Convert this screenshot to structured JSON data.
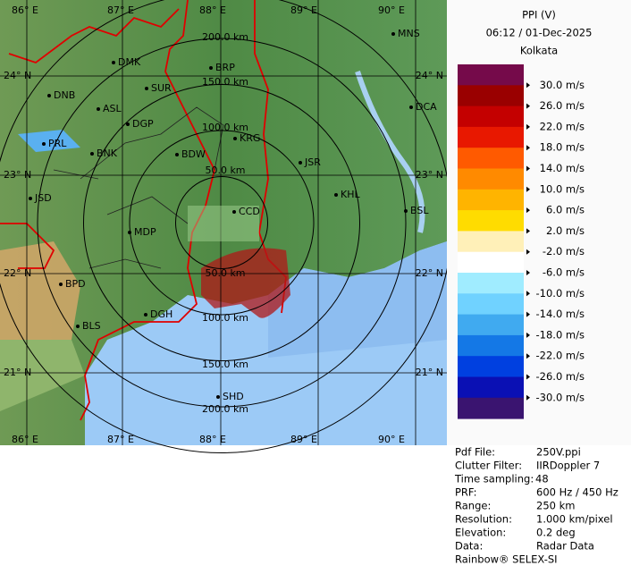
{
  "header": {
    "title": "PPI (V)",
    "time": "06:12 / 01-Dec-2025",
    "site": "Kolkata"
  },
  "legend": {
    "labels": [
      "30.0 m/s",
      "26.0 m/s",
      "22.0 m/s",
      "18.0 m/s",
      "14.0 m/s",
      "10.0 m/s",
      "6.0 m/s",
      "2.0 m/s",
      "-2.0 m/s",
      "-6.0 m/s",
      "-10.0 m/s",
      "-14.0 m/s",
      "-18.0 m/s",
      "-22.0 m/s",
      "-26.0 m/s",
      "-30.0 m/s"
    ]
  },
  "info": {
    "rows": [
      [
        "Pdf File:",
        "250V.ppi"
      ],
      [
        "Clutter Filter:",
        "IIRDoppler 7"
      ],
      [
        "Time sampling:",
        "48"
      ],
      [
        "PRF:",
        "600 Hz / 450 Hz"
      ],
      [
        "Range:",
        "250 km"
      ],
      [
        "Resolution:",
        "1.000 km/pixel"
      ],
      [
        "Elevation:",
        "0.2 deg"
      ],
      [
        "Data:",
        "Radar Data"
      ]
    ],
    "footer": "Rainbow® SELEX-SI"
  },
  "map": {
    "lon_labels_top": [
      "86° E",
      "87° E",
      "88° E",
      "89° E",
      "90° E"
    ],
    "lon_labels_bottom": [
      "86° E",
      "87° E",
      "88° E",
      "89° E",
      "90° E"
    ],
    "lat_labels_left": [
      "24° N",
      "23° N",
      "22° N",
      "21° N"
    ],
    "lat_labels_right": [
      "24° N",
      "23° N",
      "22° N",
      "21° N"
    ],
    "range_labels": [
      "200.0 km",
      "150.0 km",
      "100.0 km",
      "50.0 km",
      "50.0 km",
      "100.0 km",
      "150.0 km",
      "200.0 km"
    ],
    "stations": [
      "MNS",
      "BRP",
      "DMK",
      "SUR",
      "DNB",
      "ASL",
      "DGP",
      "DCA",
      "PRL",
      "BNK",
      "KRG",
      "BDW",
      "JSR",
      "KHL",
      "JSD",
      "BSL",
      "MDP",
      "CCD",
      "BPD",
      "BLS",
      "DGH",
      "SHD"
    ]
  }
}
